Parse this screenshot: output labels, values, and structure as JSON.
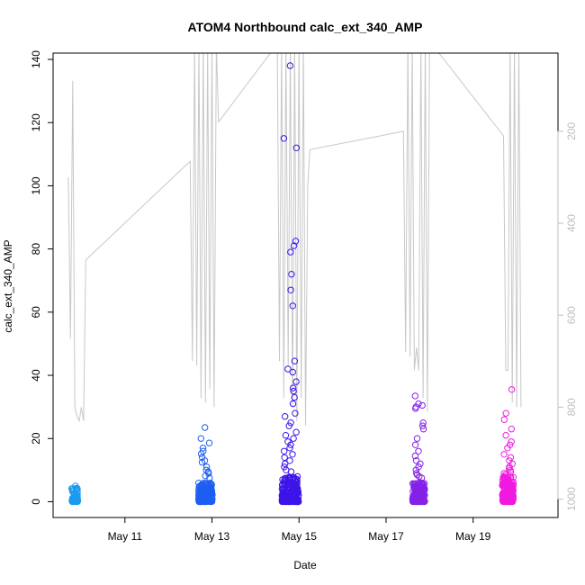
{
  "chart_data": {
    "type": "scatter",
    "title": "ATOM4 Northbound calc_ext_340_AMP",
    "xlabel": "Date",
    "ylabel": "calc_ext_340_AMP",
    "x_ticks": [
      "May 11",
      "May 13",
      "May 15",
      "May 17",
      "May 19"
    ],
    "y_ticks": [
      "0",
      "20",
      "40",
      "60",
      "80",
      "100",
      "120",
      "140"
    ],
    "y2_ticks": [
      "200",
      "400",
      "600",
      "800",
      "1000"
    ],
    "x_range_days": [
      9.35,
      20.95
    ],
    "ylim": [
      -5,
      142
    ],
    "y2lim": [
      30,
      1040
    ],
    "y2_inverted": true,
    "grid": false,
    "colors": {
      "secondary_line": "#c8c8c8",
      "axis": "#000000",
      "right_axis": "#bfbfbf"
    },
    "secondary_series": {
      "style": "line",
      "points": [
        [
          9.7,
          300
        ],
        [
          9.75,
          650
        ],
        [
          9.8,
          90
        ],
        [
          9.85,
          800
        ],
        [
          9.9,
          820
        ],
        [
          9.95,
          830
        ],
        [
          10.0,
          800
        ],
        [
          10.05,
          830
        ],
        [
          10.1,
          480
        ],
        [
          12.5,
          265
        ],
        [
          12.55,
          700
        ],
        [
          12.6,
          10
        ],
        [
          12.65,
          710
        ],
        [
          12.7,
          10
        ],
        [
          12.75,
          780
        ],
        [
          12.8,
          10
        ],
        [
          12.85,
          790
        ],
        [
          12.9,
          10
        ],
        [
          12.95,
          760
        ],
        [
          13.0,
          10
        ],
        [
          13.05,
          800
        ],
        [
          13.1,
          10
        ],
        [
          13.15,
          180
        ],
        [
          14.5,
          10
        ],
        [
          14.55,
          700
        ],
        [
          14.6,
          10
        ],
        [
          14.65,
          780
        ],
        [
          14.7,
          10
        ],
        [
          14.75,
          710
        ],
        [
          14.8,
          10
        ],
        [
          14.85,
          800
        ],
        [
          14.9,
          10
        ],
        [
          14.95,
          830
        ],
        [
          15.0,
          10
        ],
        [
          15.05,
          780
        ],
        [
          15.1,
          10
        ],
        [
          15.15,
          840
        ],
        [
          15.2,
          320
        ],
        [
          15.25,
          240
        ],
        [
          17.4,
          200
        ],
        [
          17.45,
          680
        ],
        [
          17.5,
          10
        ],
        [
          17.55,
          690
        ],
        [
          17.6,
          10
        ],
        [
          17.65,
          720
        ],
        [
          17.7,
          670
        ],
        [
          17.75,
          720
        ],
        [
          17.8,
          10
        ],
        [
          17.85,
          780
        ],
        [
          17.9,
          10
        ],
        [
          17.95,
          810
        ],
        [
          18.0,
          10
        ],
        [
          18.05,
          10
        ],
        [
          19.7,
          210
        ],
        [
          19.75,
          720
        ],
        [
          19.8,
          720
        ],
        [
          19.85,
          10
        ],
        [
          19.9,
          790
        ],
        [
          19.95,
          10
        ],
        [
          20.0,
          800
        ],
        [
          20.05,
          10
        ],
        [
          20.1,
          800
        ]
      ]
    },
    "clusters": [
      {
        "center": 9.85,
        "spread": 0.14,
        "n": 60,
        "max": 5,
        "hi": [
          5.0,
          4.3,
          3.6
        ],
        "color": "#1a9bf0"
      },
      {
        "center": 12.85,
        "spread": 0.32,
        "n": 200,
        "max": 6,
        "hi": [
          23.5,
          20.0,
          18.6,
          17.0,
          16.0,
          15.2,
          14.0,
          13.0,
          12.5,
          11.0,
          10.0,
          9.5,
          9.0,
          8.2,
          7.5
        ],
        "color": "#1e5ef2"
      },
      {
        "center": 14.8,
        "spread": 0.38,
        "n": 260,
        "max": 8,
        "hi": [
          138.0,
          115.0,
          112.0,
          82.5,
          81.0,
          79.0,
          72.0,
          67.0,
          62.0,
          44.5,
          42.0,
          41.0,
          38.0,
          36.0,
          35.0,
          33.0,
          31.0,
          28.0,
          27.0,
          25.0,
          24.0,
          22.0,
          21.0,
          20.0,
          19.0,
          18.0,
          17.0,
          16.0,
          15.0,
          14.0,
          13.0,
          12.0,
          11.0,
          10.0,
          9.5
        ],
        "color": "#3d14e8"
      },
      {
        "center": 17.75,
        "spread": 0.28,
        "n": 200,
        "max": 6,
        "hi": [
          33.5,
          31.0,
          30.5,
          30.0,
          29.5,
          25.0,
          24.0,
          23.0,
          20.0,
          18.0,
          16.0,
          14.5,
          13.0,
          12.0,
          11.0,
          10.0,
          9.0,
          8.5,
          8.0,
          7.5
        ],
        "color": "#8522e8"
      },
      {
        "center": 19.8,
        "spread": 0.26,
        "n": 220,
        "max": 8,
        "hi": [
          35.5,
          28.0,
          26.0,
          23.0,
          21.0,
          19.0,
          18.0,
          17.0,
          15.0,
          14.0,
          13.0,
          12.0,
          11.0,
          10.5,
          10.0,
          9.5,
          9.0,
          8.5
        ],
        "color": "#f01adf"
      }
    ]
  }
}
